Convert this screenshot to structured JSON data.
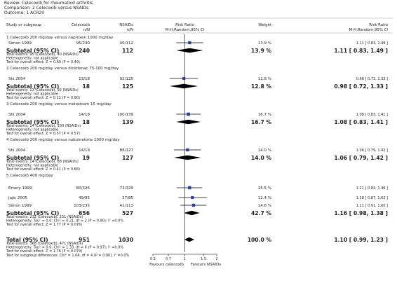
{
  "review": {
    "review_line": "Review:   Celecoxib for rheumatoid arthritis",
    "comparison_line": "Comparison:   2 Celecoxib versus NSAIDs",
    "outcome_line": "Outcome:   1 ACR20"
  },
  "columns": {
    "study": "Study or subgroup",
    "exp_name": "Celecoxib",
    "exp_sub": "n/N",
    "ctrl_name": "NSAIDs",
    "ctrl_sub": "n/N",
    "plot_title": "Risk Ratio",
    "plot_method": "M-H,Random,95% CI",
    "weight": "Weight",
    "rr_title": "Risk Ratio",
    "rr_method": "M-H,Random,95% CI"
  },
  "chart_data": {
    "type": "forest",
    "scale": "log",
    "xlim": [
      0.5,
      2
    ],
    "ticks": [
      {
        "value": 0.5,
        "label": "0.5"
      },
      {
        "value": 0.7,
        "label": "0.7"
      },
      {
        "value": 1,
        "label": "1"
      },
      {
        "value": 1.5,
        "label": "1.5"
      },
      {
        "value": 2,
        "label": "2"
      }
    ],
    "favours_left": "Favours celecoxib",
    "favours_right": "Favours NSAIDs",
    "subgroups": [
      {
        "title": "1 Celecoxib 200 mg/day versus naproxen 1000 mg/day",
        "studies": [
          {
            "name": "Simon 1999",
            "events_exp": "95/240",
            "events_ctrl": "40/112",
            "weight": "13.9 %",
            "ci_text": "1.11 [ 0.83, 1.49 ]",
            "rr": 1.11,
            "lo": 0.83,
            "hi": 1.49
          }
        ],
        "subtotal": {
          "label": "Subtotal (95% CI)",
          "n_exp": "240",
          "n_ctrl": "112",
          "weight": "13.9 %",
          "ci_text": "1.11 [ 0.83, 1.49 ]",
          "rr": 1.11,
          "lo": 0.83,
          "hi": 1.49
        },
        "notes": [
          "Total events: 95 (Celecoxib), 40 (NSAIDs)",
          "Heterogeneity: not applicable",
          "Test for overall effect: Z = 0.69 (P = 0.49)"
        ]
      },
      {
        "title": "2 Celecoxib 200 mg/day versus diclofenac 75-100 mg/day",
        "studies": [
          {
            "name": "Shi 2004",
            "events_exp": "13/18",
            "events_ctrl": "92/125",
            "weight": "12.8 %",
            "ci_text": "0.98 [ 0.72, 1.33 ]",
            "rr": 0.98,
            "lo": 0.72,
            "hi": 1.33
          }
        ],
        "subtotal": {
          "label": "Subtotal (95% CI)",
          "n_exp": "18",
          "n_ctrl": "125",
          "weight": "12.8 %",
          "ci_text": "0.98 [ 0.72, 1.33 ]",
          "rr": 0.98,
          "lo": 0.72,
          "hi": 1.33
        },
        "notes": [
          "Total events: 13 (Celecoxib), 92 (NSAIDs)",
          "Heterogeneity: not applicable",
          "Test for overall effect: Z = 0.12 (P = 0.90)"
        ]
      },
      {
        "title": "3 Celecoxib 200 mg/day versus meloxicam 15 mg/day",
        "studies": [
          {
            "name": "Shi 2004",
            "events_exp": "14/18",
            "events_ctrl": "100/139",
            "weight": "16.7 %",
            "ci_text": "1.08 [ 0.83, 1.41 ]",
            "rr": 1.08,
            "lo": 0.83,
            "hi": 1.41
          }
        ],
        "subtotal": {
          "label": "Subtotal (95% CI)",
          "n_exp": "18",
          "n_ctrl": "139",
          "weight": "16.7 %",
          "ci_text": "1.08 [ 0.83, 1.41 ]",
          "rr": 1.08,
          "lo": 0.83,
          "hi": 1.41
        },
        "notes": [
          "Total events: 14 (Celecoxib), 100 (NSAIDs)",
          "Heterogeneity: not applicable",
          "Test for overall effect: Z = 0.57 (P = 0.57)"
        ]
      },
      {
        "title": "4 Celecoxib 200 mg/day versus nabumetone 1000 mg/day",
        "studies": [
          {
            "name": "Shi 2004",
            "events_exp": "14/19",
            "events_ctrl": "88/127",
            "weight": "14.0 %",
            "ci_text": "1.06 [ 0.79, 1.42 ]",
            "rr": 1.06,
            "lo": 0.79,
            "hi": 1.42
          }
        ],
        "subtotal": {
          "label": "Subtotal (95% CI)",
          "n_exp": "19",
          "n_ctrl": "127",
          "weight": "14.0 %",
          "ci_text": "1.06 [ 0.79, 1.42 ]",
          "rr": 1.06,
          "lo": 0.79,
          "hi": 1.42
        },
        "notes": [
          "Total events: 14 (Celecoxib), 88 (NSAIDs)",
          "Heterogeneity: not applicable",
          "Test for overall effect: Z = 0.41 (P = 0.68)"
        ]
      },
      {
        "title": "5 Celecoxib 400 mg/day",
        "studies": [
          {
            "name": "Emery 1999",
            "events_exp": "80/326",
            "events_ctrl": "73/329",
            "weight": "15.5 %",
            "ci_text": "1.11 [ 0.84, 1.46 ]",
            "rr": 1.11,
            "lo": 0.84,
            "hi": 1.46
          },
          {
            "name": "Jajic 2005",
            "events_exp": "49/95",
            "events_ctrl": "37/85",
            "weight": "12.4 %",
            "ci_text": "1.18 [ 0.87, 1.62 ]",
            "rr": 1.18,
            "lo": 0.87,
            "hi": 1.62
          },
          {
            "name": "Simon 1999",
            "events_exp": "103/235",
            "events_ctrl": "41/113",
            "weight": "14.8 %",
            "ci_text": "1.21 [ 0.91, 1.60 ]",
            "rr": 1.21,
            "lo": 0.91,
            "hi": 1.6
          }
        ],
        "subtotal": {
          "label": "Subtotal (95% CI)",
          "n_exp": "656",
          "n_ctrl": "527",
          "weight": "42.7 %",
          "ci_text": "1.16 [ 0.98, 1.38 ]",
          "rr": 1.16,
          "lo": 0.98,
          "hi": 1.38
        },
        "notes": [
          "Total events: 232 (Celecoxib), 151 (NSAIDs)",
          "Heterogeneity: Tau² = 0.0; Chi² = 0.21, df = 2 (P = 0.90); I² =0.0%",
          "Test for overall effect: Z = 1.77 (P = 0.076)"
        ]
      }
    ],
    "total": {
      "label": "Total (95% CI)",
      "n_exp": "951",
      "n_ctrl": "1030",
      "weight": "100.0 %",
      "ci_text": "1.10 [ 0.99, 1.23 ]",
      "rr": 1.1,
      "lo": 0.99,
      "hi": 1.23,
      "notes": [
        "Total events: 368 (Celecoxib), 471 (NSAIDs)",
        "Heterogeneity: Tau² = 0.0; Chi² = 1.33, df = 6 (P = 0.97); I² =0.0%",
        "Test for overall effect: Z = 1.76 (P = 0.079)",
        "Test for subgroup differences: Chi² = 1.04, df = 4 (P = 0.90), I² =0.0%"
      ]
    },
    "colors": {
      "marker": "#1f3fbf",
      "diamond": "#000000",
      "rule": "#999999",
      "text": "#222222"
    }
  }
}
